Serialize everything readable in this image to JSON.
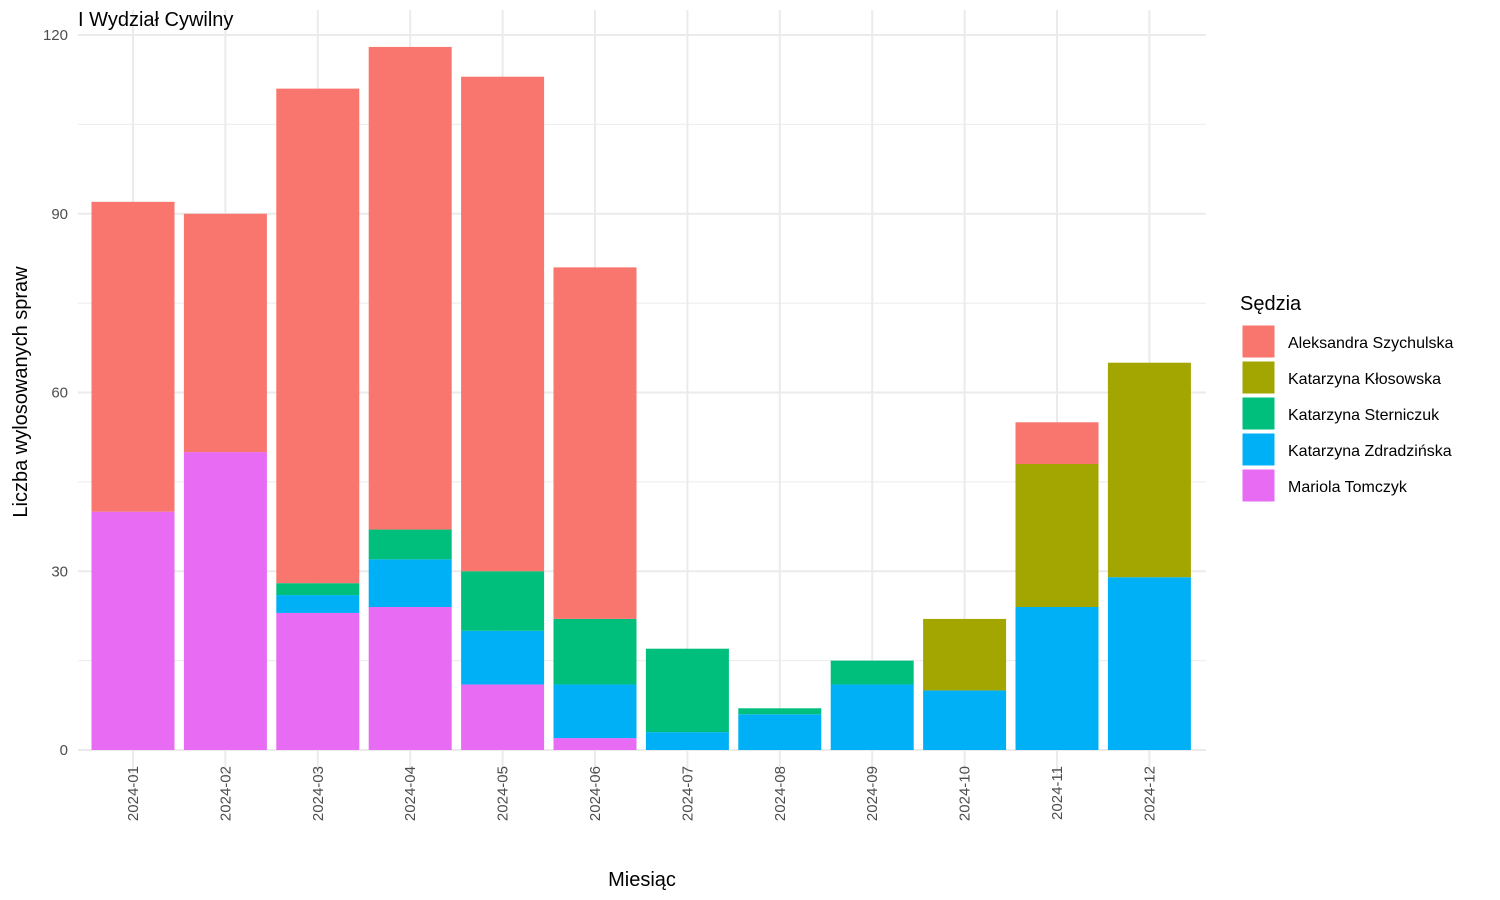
{
  "chart_data": {
    "type": "bar",
    "stacked": true,
    "title": "I Wydział Cywilny",
    "xlabel": "Miesiąc",
    "ylabel": "Liczba wylosowanych spraw",
    "ylim": [
      0,
      120
    ],
    "yticks": [
      0,
      30,
      60,
      90,
      120
    ],
    "grid": true,
    "legend_title": "Sędzia",
    "legend_position": "right",
    "categories": [
      "2024-01",
      "2024-02",
      "2024-03",
      "2024-04",
      "2024-05",
      "2024-06",
      "2024-07",
      "2024-08",
      "2024-09",
      "2024-10",
      "2024-11",
      "2024-12"
    ],
    "stack_order_bottom_to_top": [
      "Mariola Tomczyk",
      "Katarzyna Zdradzińska",
      "Katarzyna Sterniczuk",
      "Katarzyna Kłosowska",
      "Aleksandra Szychulska"
    ],
    "series": [
      {
        "name": "Aleksandra Szychulska",
        "color": "#F8766D",
        "values": [
          52,
          40,
          83,
          81,
          83,
          59,
          0,
          0,
          0,
          0,
          7,
          0
        ]
      },
      {
        "name": "Katarzyna Kłosowska",
        "color": "#A3A500",
        "values": [
          0,
          0,
          0,
          0,
          0,
          0,
          0,
          0,
          0,
          12,
          24,
          36
        ]
      },
      {
        "name": "Katarzyna Sterniczuk",
        "color": "#00BF7D",
        "values": [
          0,
          0,
          2,
          5,
          10,
          11,
          14,
          1,
          4,
          0,
          0,
          0
        ]
      },
      {
        "name": "Katarzyna Zdradzińska",
        "color": "#00B0F6",
        "values": [
          0,
          0,
          3,
          8,
          9,
          9,
          3,
          6,
          11,
          10,
          24,
          29
        ]
      },
      {
        "name": "Mariola Tomczyk",
        "color": "#E76BF3",
        "values": [
          40,
          50,
          23,
          24,
          11,
          2,
          0,
          0,
          0,
          0,
          0,
          0
        ]
      }
    ]
  }
}
